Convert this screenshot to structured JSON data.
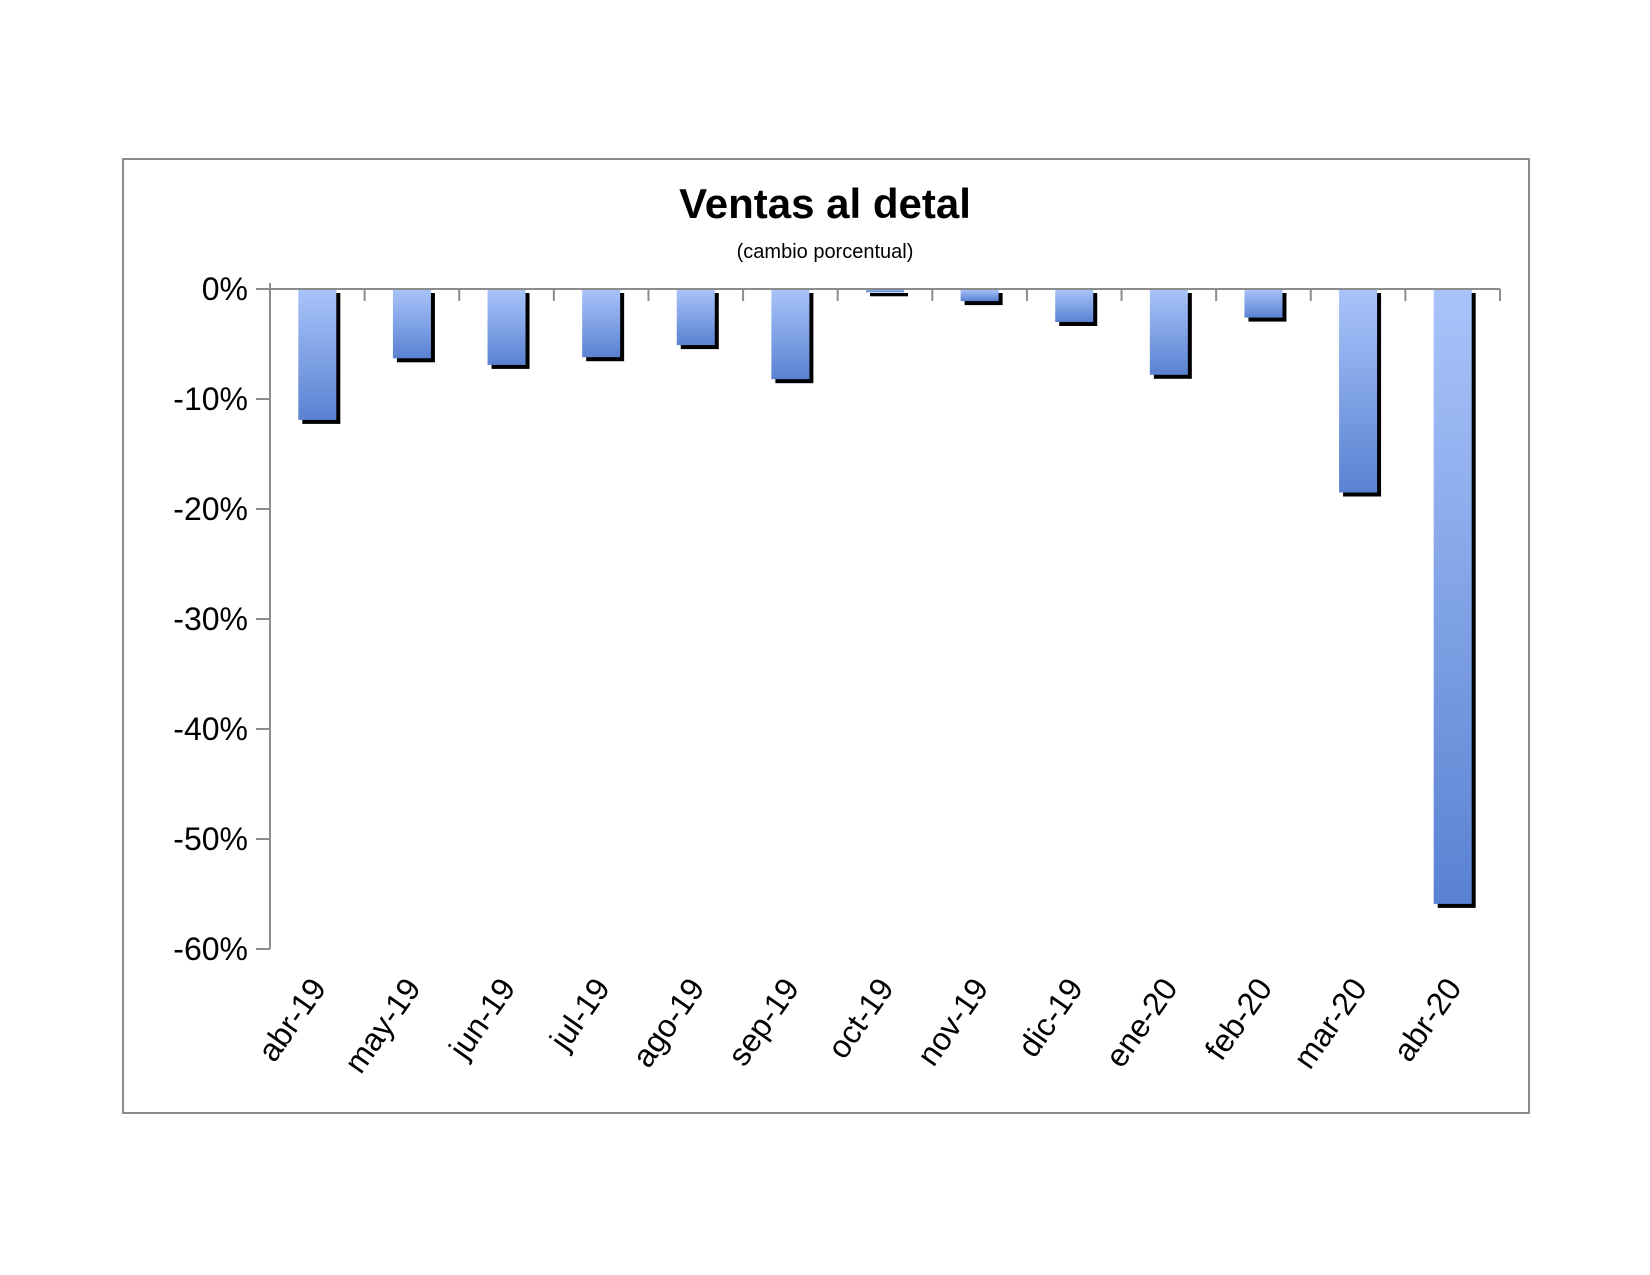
{
  "chart_data": {
    "type": "bar",
    "title": "Ventas al detal",
    "subtitle": "(cambio porcentual)",
    "xlabel": "",
    "ylabel": "",
    "categories": [
      "abr-19",
      "may-19",
      "jun-19",
      "jul-19",
      "ago-19",
      "sep-19",
      "oct-19",
      "nov-19",
      "dic-19",
      "ene-20",
      "feb-20",
      "mar-20",
      "abr-20"
    ],
    "values": [
      -11.9,
      -6.3,
      -6.9,
      -6.2,
      -5.1,
      -8.2,
      -0.3,
      -1.1,
      -3.0,
      -7.8,
      -2.6,
      -18.5,
      -55.9
    ],
    "y_unit": "%",
    "ylim": [
      -60,
      0
    ],
    "yticks": [
      0,
      -10,
      -20,
      -30,
      -40,
      -50,
      -60
    ],
    "ytick_labels": [
      "0%",
      "-10%",
      "-20%",
      "-30%",
      "-40%",
      "-50%",
      "-60%"
    ],
    "grid": false,
    "legend": "none",
    "colors": {
      "bar_light": "#a9c4fa",
      "bar_dark": "#5a82d2",
      "bar_shadow": "#000000",
      "axis": "#8c8c8c",
      "frame": "#8c8c8c"
    }
  }
}
